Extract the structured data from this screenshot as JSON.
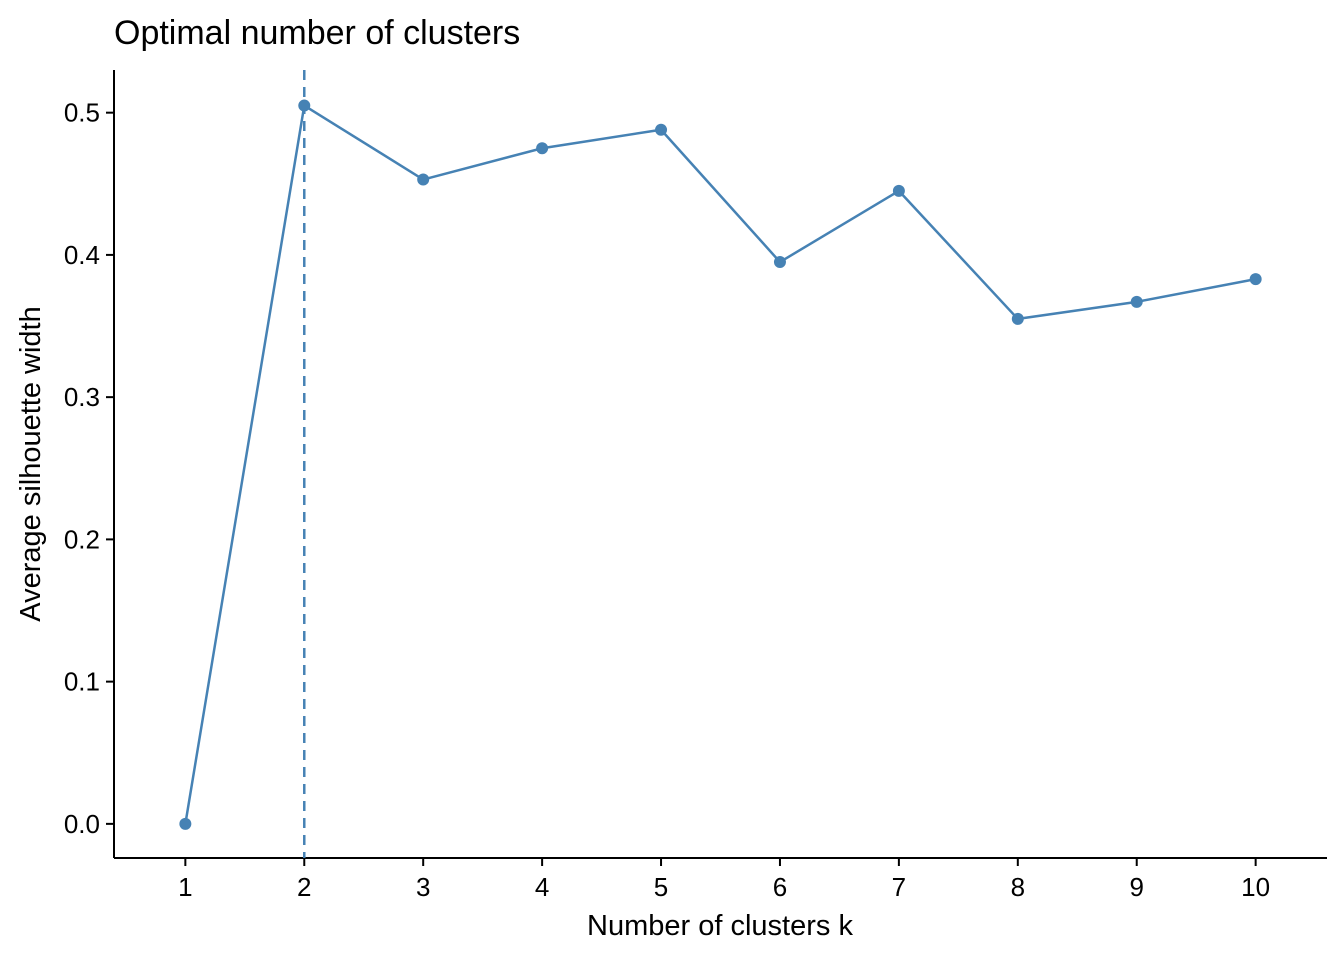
{
  "chart_data": {
    "type": "line",
    "title": "Optimal number of clusters",
    "xlabel": "Number of clusters k",
    "ylabel": "Average silhouette width",
    "categories": [
      "1",
      "2",
      "3",
      "4",
      "5",
      "6",
      "7",
      "8",
      "9",
      "10"
    ],
    "x": [
      1,
      2,
      3,
      4,
      5,
      6,
      7,
      8,
      9,
      10
    ],
    "series": [
      {
        "name": "Average silhouette width",
        "color": "#4682B4",
        "values": [
          0.0,
          0.505,
          0.453,
          0.475,
          0.488,
          0.395,
          0.445,
          0.355,
          0.367,
          0.383
        ]
      }
    ],
    "yticks": [
      "0.0",
      "0.1",
      "0.2",
      "0.3",
      "0.4",
      "0.5"
    ],
    "ytick_values": [
      0,
      0.1,
      0.2,
      0.3,
      0.4,
      0.5
    ],
    "xlim": [
      0.4,
      10.6
    ],
    "ylim": [
      -0.024,
      0.53
    ],
    "vline": {
      "x": 2,
      "style": "dashed",
      "color": "#4682B4"
    },
    "grid": false,
    "legend": "none"
  }
}
